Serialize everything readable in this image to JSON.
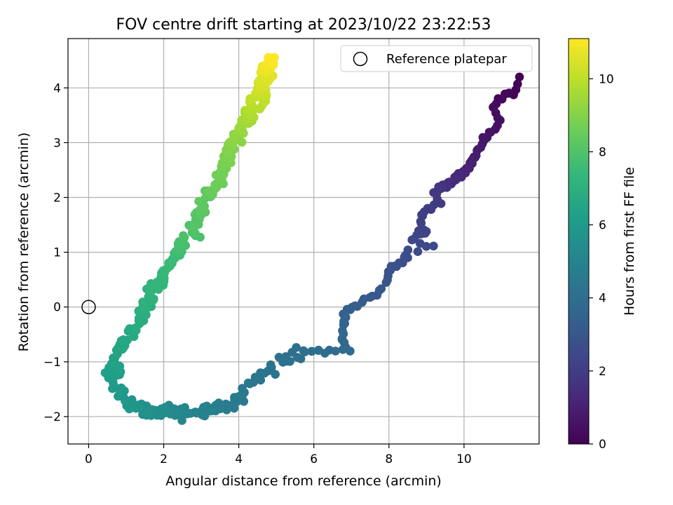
{
  "chart_data": {
    "type": "scatter",
    "title": "FOV centre drift starting at 2023/10/22 23:22:53",
    "xlabel": "Angular distance from reference (arcmin)",
    "ylabel": "Rotation from reference (arcmin)",
    "xlim": [
      -0.55,
      12.0
    ],
    "ylim": [
      -2.5,
      4.9
    ],
    "xticks": [
      0,
      2,
      4,
      6,
      8,
      10
    ],
    "yticks": [
      -2,
      -1,
      0,
      1,
      2,
      3,
      4
    ],
    "grid": true,
    "legend": {
      "placement": "top-right",
      "entries": [
        "Reference platepar"
      ]
    },
    "reference_point": {
      "x": 0,
      "y": 0,
      "label": "Reference platepar"
    },
    "colorbar": {
      "label": "Hours from first FF file",
      "range": [
        0,
        11.1
      ],
      "ticks": [
        0,
        2,
        4,
        6,
        8,
        10
      ],
      "colormap": "viridis",
      "colors": [
        "#440154",
        "#482878",
        "#3e4989",
        "#31688e",
        "#26828e",
        "#1f9e89",
        "#35b779",
        "#6ece58",
        "#b5de2b",
        "#fde725"
      ]
    },
    "path": [
      [
        11.45,
        4.18,
        0.0
      ],
      [
        11.3,
        3.88,
        0.1
      ],
      [
        11.1,
        3.9,
        0.2
      ],
      [
        10.75,
        3.62,
        0.35
      ],
      [
        11.0,
        3.35,
        0.45
      ],
      [
        10.7,
        3.22,
        0.55
      ],
      [
        10.25,
        2.7,
        0.9
      ],
      [
        10.0,
        2.45,
        1.15
      ],
      [
        9.8,
        2.4,
        1.3
      ],
      [
        9.6,
        2.25,
        1.5
      ],
      [
        9.4,
        2.15,
        1.65
      ],
      [
        9.2,
        2.12,
        1.8
      ],
      [
        9.35,
        1.9,
        1.9
      ],
      [
        8.9,
        1.7,
        2.05
      ],
      [
        8.8,
        1.4,
        2.2
      ],
      [
        9.0,
        1.4,
        2.25
      ],
      [
        8.6,
        1.2,
        2.4
      ],
      [
        9.2,
        1.1,
        2.5
      ],
      [
        8.5,
        1.0,
        2.55
      ],
      [
        8.35,
        0.85,
        2.7
      ],
      [
        8.05,
        0.7,
        2.85
      ],
      [
        7.95,
        0.52,
        2.95
      ],
      [
        7.8,
        0.28,
        3.05
      ],
      [
        7.0,
        0.0,
        3.3
      ],
      [
        6.85,
        -0.1,
        3.4
      ],
      [
        6.8,
        -0.3,
        3.55
      ],
      [
        6.75,
        -0.6,
        3.7
      ],
      [
        6.95,
        -0.8,
        3.8
      ],
      [
        6.4,
        -0.8,
        3.9
      ],
      [
        6.0,
        -0.8,
        4.0
      ],
      [
        5.5,
        -0.85,
        4.1
      ],
      [
        5.0,
        -1.0,
        4.2
      ],
      [
        4.5,
        -1.35,
        4.35
      ],
      [
        4.0,
        -1.75,
        4.55
      ],
      [
        3.5,
        -1.85,
        4.7
      ],
      [
        3.0,
        -1.9,
        4.9
      ],
      [
        2.5,
        -1.95,
        5.1
      ],
      [
        2.0,
        -1.9,
        5.35
      ],
      [
        1.5,
        -1.9,
        5.6
      ],
      [
        1.0,
        -1.75,
        5.85
      ],
      [
        0.75,
        -1.4,
        6.05
      ],
      [
        0.6,
        -1.2,
        6.2
      ],
      [
        0.75,
        -0.9,
        6.4
      ],
      [
        1.0,
        -0.55,
        6.6
      ],
      [
        1.3,
        -0.3,
        6.8
      ],
      [
        1.5,
        0.0,
        7.0
      ],
      [
        1.7,
        0.3,
        7.2
      ],
      [
        2.0,
        0.6,
        7.4
      ],
      [
        2.2,
        0.85,
        7.55
      ],
      [
        2.5,
        1.1,
        7.75
      ],
      [
        2.75,
        1.3,
        7.9
      ],
      [
        2.9,
        1.6,
        8.1
      ],
      [
        3.1,
        1.95,
        8.3
      ],
      [
        3.35,
        2.2,
        8.5
      ],
      [
        3.55,
        2.45,
        8.7
      ],
      [
        3.75,
        2.8,
        8.9
      ],
      [
        3.9,
        3.1,
        9.15
      ],
      [
        4.1,
        3.3,
        9.4
      ],
      [
        4.3,
        3.55,
        9.7
      ],
      [
        4.5,
        3.75,
        9.95
      ],
      [
        4.6,
        4.0,
        10.3
      ],
      [
        4.75,
        4.3,
        10.7
      ],
      [
        4.9,
        4.55,
        11.1
      ]
    ]
  }
}
